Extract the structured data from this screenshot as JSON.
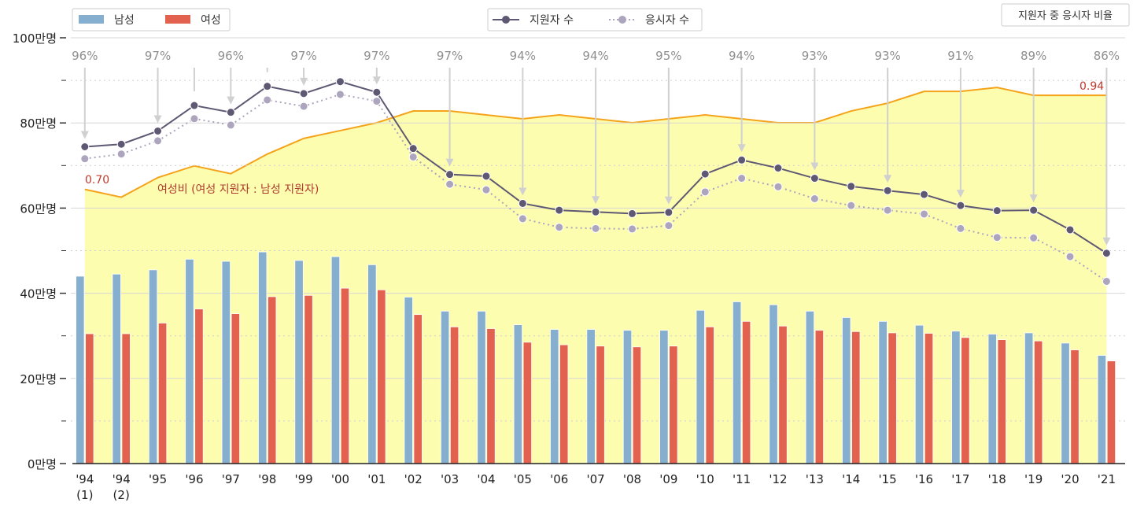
{
  "chart_data": {
    "type": "bar",
    "categories": [
      "'94\n(1)",
      "'94\n(2)",
      "'95",
      "'96",
      "'97",
      "'98",
      "'99",
      "'00",
      "'01",
      "'02",
      "'03",
      "'04",
      "'05",
      "'06",
      "'07",
      "'08",
      "'09",
      "'10",
      "'11",
      "'12",
      "'13",
      "'14",
      "'15",
      "'16",
      "'17",
      "'18",
      "'19",
      "'20",
      "'21"
    ],
    "ylim": [
      0,
      100
    ],
    "y_ticks": [
      {
        "value": 0,
        "label": "0만명"
      },
      {
        "value": 20,
        "label": "20만명"
      },
      {
        "value": 40,
        "label": "40만명"
      },
      {
        "value": 60,
        "label": "60만명"
      },
      {
        "value": 80,
        "label": "80만명"
      },
      {
        "value": 100,
        "label": "100만명"
      }
    ],
    "bar_series": [
      {
        "name": "남성",
        "color": "#86aece",
        "values": [
          44.0,
          44.5,
          45.5,
          48.0,
          47.5,
          49.7,
          47.7,
          48.6,
          46.7,
          39.1,
          35.8,
          35.8,
          32.6,
          31.5,
          31.5,
          31.3,
          31.3,
          36.0,
          38.0,
          37.3,
          35.8,
          34.3,
          33.4,
          32.5,
          31.1,
          30.4,
          30.7,
          28.3,
          25.4
        ]
      },
      {
        "name": "여성",
        "color": "#e3624f",
        "values": [
          30.5,
          30.5,
          33.0,
          36.3,
          35.2,
          39.2,
          39.5,
          41.2,
          40.8,
          35.0,
          32.1,
          31.7,
          28.5,
          27.9,
          27.6,
          27.4,
          27.6,
          32.1,
          33.4,
          32.3,
          31.3,
          31.0,
          30.7,
          30.6,
          29.6,
          29.1,
          28.8,
          26.7,
          24.1
        ]
      }
    ],
    "line_series": [
      {
        "name": "지원자 수",
        "color": "#5e5873",
        "values": [
          74.4,
          75.0,
          78.1,
          84.1,
          82.5,
          88.6,
          86.9,
          89.7,
          87.2,
          74.0,
          67.9,
          67.5,
          61.1,
          59.5,
          59.1,
          58.7,
          59.0,
          68.0,
          71.3,
          69.4,
          67.0,
          65.1,
          64.1,
          63.2,
          60.6,
          59.4,
          59.5,
          54.9,
          49.4
        ]
      },
      {
        "name": "응시자 수",
        "color": "#aca5bd",
        "values": [
          71.6,
          72.7,
          75.8,
          81.0,
          79.5,
          85.4,
          83.9,
          86.7,
          85.1,
          72.0,
          65.6,
          64.3,
          57.5,
          55.5,
          55.2,
          55.1,
          55.9,
          63.8,
          67.0,
          65.0,
          62.2,
          60.6,
          59.5,
          58.6,
          55.2,
          53.1,
          53.0,
          48.6,
          42.8
        ]
      }
    ],
    "ratio_series": {
      "name": "여성비 (여성 지원자 : 남성 지원자)",
      "color": "#f5a31b",
      "fill": "#fdfdb0",
      "values": [
        0.7,
        0.68,
        0.73,
        0.76,
        0.74,
        0.79,
        0.83,
        0.85,
        0.87,
        0.9,
        0.9,
        0.89,
        0.88,
        0.89,
        0.88,
        0.87,
        0.88,
        0.89,
        0.88,
        0.87,
        0.87,
        0.9,
        0.92,
        0.95,
        0.95,
        0.96,
        0.94,
        0.94,
        0.94
      ],
      "first_label": "0.70",
      "last_label": "0.94"
    },
    "exam_rate": {
      "title": "지원자 중 응시자 비율",
      "indices": [
        0,
        2,
        3,
        5,
        6,
        8,
        10,
        12,
        14,
        16,
        18,
        20,
        22,
        24,
        26,
        28
      ],
      "labels": [
        "96%",
        "97%",
        "96%",
        "97%",
        "97%",
        "97%",
        "94%",
        "94%",
        "95%",
        "94%",
        "93%",
        "93%",
        "91%",
        "89%",
        "86%"
      ],
      "label_indices": [
        0,
        2,
        4,
        6,
        8,
        10,
        12,
        14,
        16,
        18,
        20,
        22,
        24,
        26,
        28
      ]
    },
    "legend_bars": [
      "남성",
      "여성"
    ],
    "legend_lines": [
      "지원자 수",
      "응시자 수"
    ],
    "grid": true
  }
}
